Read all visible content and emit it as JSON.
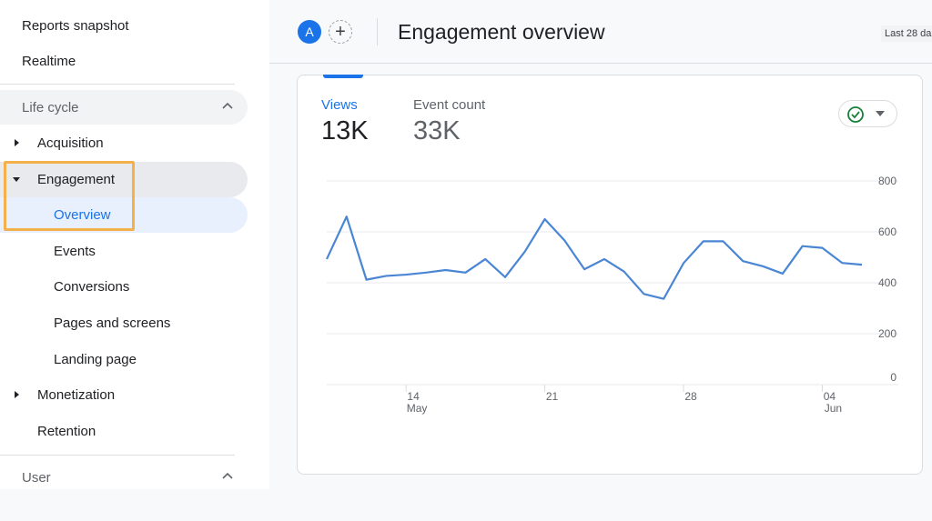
{
  "sidebar": {
    "top_items": [
      "Reports snapshot",
      "Realtime"
    ],
    "lifecycle": {
      "label": "Life cycle",
      "items": [
        {
          "label": "Acquisition",
          "type": "collapsed"
        },
        {
          "label": "Engagement",
          "type": "expanded"
        },
        {
          "label": "Overview",
          "type": "child",
          "active": true
        },
        {
          "label": "Events",
          "type": "child"
        },
        {
          "label": "Conversions",
          "type": "child"
        },
        {
          "label": "Pages and screens",
          "type": "child"
        },
        {
          "label": "Landing page",
          "type": "child"
        },
        {
          "label": "Monetization",
          "type": "collapsed"
        },
        {
          "label": "Retention",
          "type": "plain"
        }
      ]
    },
    "user_section": "User",
    "highlight_color": "#f4b04a"
  },
  "header": {
    "avatar": "A",
    "title": "Engagement overview",
    "date_range": "Last 28 da"
  },
  "card": {
    "metrics": [
      {
        "label": "Views",
        "value": "13K",
        "active": true
      },
      {
        "label": "Event count",
        "value": "33K",
        "active": false
      }
    ],
    "accent": "#1a73e8",
    "line_color": "#4a86d4"
  },
  "chart_data": {
    "type": "line",
    "x": [
      "May 10",
      "May 11",
      "May 12",
      "May 13",
      "May 14",
      "May 15",
      "May 16",
      "May 17",
      "May 18",
      "May 19",
      "May 20",
      "May 21",
      "May 22",
      "May 23",
      "May 24",
      "May 25",
      "May 26",
      "May 27",
      "May 28",
      "May 29",
      "May 30",
      "May 31",
      "Jun 01",
      "Jun 02",
      "Jun 03",
      "Jun 04",
      "Jun 05",
      "Jun 06"
    ],
    "values": [
      493,
      660,
      412,
      427,
      432,
      440,
      450,
      440,
      493,
      422,
      523,
      650,
      566,
      453,
      493,
      444,
      356,
      337,
      477,
      563,
      563,
      485,
      465,
      436,
      544,
      537,
      478,
      471
    ],
    "ylim": [
      0,
      800
    ],
    "yticks": [
      "800",
      "600",
      "400",
      "200",
      "0"
    ],
    "xticks": [
      {
        "day": "14",
        "month": "May"
      },
      {
        "day": "21",
        "month": ""
      },
      {
        "day": "28",
        "month": ""
      },
      {
        "day": "04",
        "month": "Jun"
      }
    ],
    "grid": true
  }
}
